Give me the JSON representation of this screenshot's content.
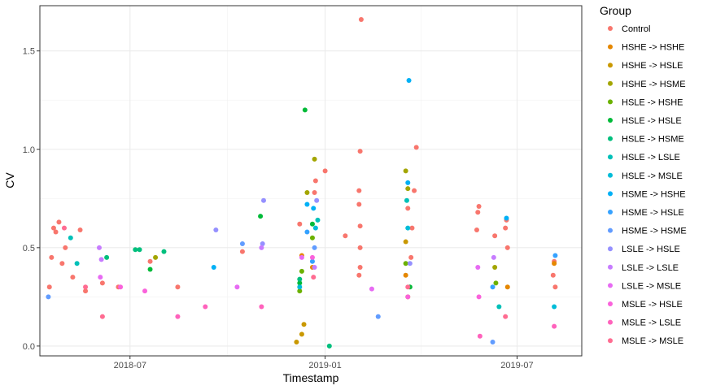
{
  "chart_data": {
    "type": "scatter",
    "title": "",
    "xlabel": "Timestamp",
    "ylabel": "CV",
    "x_type": "date",
    "xlim": [
      "2018-04-07",
      "2019-08-31"
    ],
    "ylim": [
      -0.05,
      1.73
    ],
    "x_ticks": [
      {
        "value": "2018-07-01",
        "label": "2018-07"
      },
      {
        "value": "2019-01-01",
        "label": "2019-01"
      },
      {
        "value": "2019-07-01",
        "label": "2019-07"
      }
    ],
    "y_ticks": [
      {
        "value": 0.0,
        "label": "0.0"
      },
      {
        "value": 0.5,
        "label": "0.5"
      },
      {
        "value": 1.0,
        "label": "1.0"
      },
      {
        "value": 1.5,
        "label": "1.5"
      }
    ],
    "grid": true,
    "legend": {
      "title": "Group",
      "position": "right"
    },
    "series": [
      {
        "name": "Control",
        "color": "#F8766D",
        "points": [
          {
            "x": "2018-04-20",
            "y": 0.6
          },
          {
            "x": "2018-04-25",
            "y": 0.63
          },
          {
            "x": "2018-04-22",
            "y": 0.58
          },
          {
            "x": "2018-05-15",
            "y": 0.59
          },
          {
            "x": "2018-05-01",
            "y": 0.5
          },
          {
            "x": "2018-04-18",
            "y": 0.45
          },
          {
            "x": "2018-04-16",
            "y": 0.3
          },
          {
            "x": "2018-04-28",
            "y": 0.42
          },
          {
            "x": "2018-05-08",
            "y": 0.35
          },
          {
            "x": "2018-05-20",
            "y": 0.28
          },
          {
            "x": "2018-06-05",
            "y": 0.32
          },
          {
            "x": "2018-06-20",
            "y": 0.3
          },
          {
            "x": "2018-07-20",
            "y": 0.43
          },
          {
            "x": "2018-08-15",
            "y": 0.3
          },
          {
            "x": "2018-10-15",
            "y": 0.48
          },
          {
            "x": "2018-12-08",
            "y": 0.62
          },
          {
            "x": "2018-12-22",
            "y": 0.78
          },
          {
            "x": "2018-12-23",
            "y": 0.84
          },
          {
            "x": "2019-01-01",
            "y": 0.89
          },
          {
            "x": "2019-01-20",
            "y": 0.56
          },
          {
            "x": "2019-02-04",
            "y": 1.66
          },
          {
            "x": "2019-02-03",
            "y": 0.99
          },
          {
            "x": "2019-02-02",
            "y": 0.79
          },
          {
            "x": "2019-02-02",
            "y": 0.72
          },
          {
            "x": "2019-02-03",
            "y": 0.61
          },
          {
            "x": "2019-02-03",
            "y": 0.4
          },
          {
            "x": "2019-02-02",
            "y": 0.36
          },
          {
            "x": "2019-02-03",
            "y": 0.5
          },
          {
            "x": "2019-03-28",
            "y": 1.01
          },
          {
            "x": "2019-03-26",
            "y": 0.79
          },
          {
            "x": "2019-03-20",
            "y": 0.7
          },
          {
            "x": "2019-03-24",
            "y": 0.6
          },
          {
            "x": "2019-03-23",
            "y": 0.45
          },
          {
            "x": "2019-05-26",
            "y": 0.71
          },
          {
            "x": "2019-05-25",
            "y": 0.68
          },
          {
            "x": "2019-05-24",
            "y": 0.59
          },
          {
            "x": "2019-06-10",
            "y": 0.56
          },
          {
            "x": "2019-06-21",
            "y": 0.64
          },
          {
            "x": "2019-06-20",
            "y": 0.6
          },
          {
            "x": "2019-06-22",
            "y": 0.5
          },
          {
            "x": "2019-08-05",
            "y": 0.43
          },
          {
            "x": "2019-08-04",
            "y": 0.36
          },
          {
            "x": "2019-08-06",
            "y": 0.3
          }
        ]
      },
      {
        "name": "HSHE -> HSHE",
        "color": "#E58700",
        "points": [
          {
            "x": "2018-12-10",
            "y": 0.46
          },
          {
            "x": "2018-12-20",
            "y": 0.4
          },
          {
            "x": "2019-03-18",
            "y": 0.36
          },
          {
            "x": "2019-06-22",
            "y": 0.3
          },
          {
            "x": "2019-08-05",
            "y": 0.42
          }
        ]
      },
      {
        "name": "HSHE -> HSLE",
        "color": "#C99800",
        "points": [
          {
            "x": "2018-12-05",
            "y": 0.02
          },
          {
            "x": "2018-12-10",
            "y": 0.06
          },
          {
            "x": "2018-12-12",
            "y": 0.11
          },
          {
            "x": "2019-03-18",
            "y": 0.53
          },
          {
            "x": "2019-03-20",
            "y": 0.25
          }
        ]
      },
      {
        "name": "HSHE -> HSME",
        "color": "#A3A500",
        "points": [
          {
            "x": "2018-12-22",
            "y": 0.95
          },
          {
            "x": "2018-12-15",
            "y": 0.78
          },
          {
            "x": "2018-07-25",
            "y": 0.45
          },
          {
            "x": "2019-03-18",
            "y": 0.89
          },
          {
            "x": "2019-03-20",
            "y": 0.8
          },
          {
            "x": "2019-06-10",
            "y": 0.4
          }
        ]
      },
      {
        "name": "HSLE -> HSHE",
        "color": "#6BB100",
        "points": [
          {
            "x": "2018-12-10",
            "y": 0.38
          },
          {
            "x": "2018-12-08",
            "y": 0.28
          },
          {
            "x": "2018-12-20",
            "y": 0.55
          },
          {
            "x": "2019-03-18",
            "y": 0.42
          },
          {
            "x": "2019-06-11",
            "y": 0.32
          }
        ]
      },
      {
        "name": "HSLE -> HSLE",
        "color": "#00BA38",
        "points": [
          {
            "x": "2018-12-13",
            "y": 1.2
          },
          {
            "x": "2018-07-20",
            "y": 0.39
          },
          {
            "x": "2018-11-01",
            "y": 0.66
          },
          {
            "x": "2018-12-20",
            "y": 0.62
          },
          {
            "x": "2018-12-08",
            "y": 0.32
          },
          {
            "x": "2019-03-22",
            "y": 0.3
          }
        ]
      },
      {
        "name": "HSLE -> HSME",
        "color": "#00BF7D",
        "points": [
          {
            "x": "2018-06-09",
            "y": 0.45
          },
          {
            "x": "2018-07-06",
            "y": 0.49
          },
          {
            "x": "2018-07-10",
            "y": 0.49
          },
          {
            "x": "2018-08-02",
            "y": 0.48
          },
          {
            "x": "2018-12-08",
            "y": 0.34
          },
          {
            "x": "2019-01-05",
            "y": 0.0
          }
        ]
      },
      {
        "name": "HSLE -> LSLE",
        "color": "#00C0B8",
        "points": [
          {
            "x": "2018-05-12",
            "y": 0.42
          },
          {
            "x": "2018-05-06",
            "y": 0.55
          },
          {
            "x": "2018-12-25",
            "y": 0.64
          },
          {
            "x": "2019-03-19",
            "y": 0.74
          },
          {
            "x": "2019-06-14",
            "y": 0.2
          }
        ]
      },
      {
        "name": "HSLE -> MSLE",
        "color": "#00BCD8",
        "points": [
          {
            "x": "2018-12-08",
            "y": 0.3
          },
          {
            "x": "2018-12-23",
            "y": 0.6
          },
          {
            "x": "2019-03-20",
            "y": 0.6
          },
          {
            "x": "2019-08-05",
            "y": 0.2
          }
        ]
      },
      {
        "name": "HSME -> HSHE",
        "color": "#00B0F6",
        "points": [
          {
            "x": "2019-03-21",
            "y": 1.35
          },
          {
            "x": "2019-03-20",
            "y": 0.83
          },
          {
            "x": "2018-12-21",
            "y": 0.7
          },
          {
            "x": "2018-12-15",
            "y": 0.72
          },
          {
            "x": "2019-06-21",
            "y": 0.65
          },
          {
            "x": "2018-09-18",
            "y": 0.4
          }
        ]
      },
      {
        "name": "HSME -> HSLE",
        "color": "#35A2FF",
        "points": [
          {
            "x": "2018-12-15",
            "y": 0.58
          },
          {
            "x": "2018-12-20",
            "y": 0.43
          },
          {
            "x": "2019-06-08",
            "y": 0.3
          },
          {
            "x": "2019-08-06",
            "y": 0.46
          }
        ]
      },
      {
        "name": "HSME -> HSME",
        "color": "#619CFF",
        "points": [
          {
            "x": "2019-02-20",
            "y": 0.15
          },
          {
            "x": "2018-10-15",
            "y": 0.52
          },
          {
            "x": "2018-04-15",
            "y": 0.25
          },
          {
            "x": "2018-12-22",
            "y": 0.5
          },
          {
            "x": "2019-06-08",
            "y": 0.02
          }
        ]
      },
      {
        "name": "LSLE -> HSLE",
        "color": "#9590FF",
        "points": [
          {
            "x": "2018-11-04",
            "y": 0.74
          },
          {
            "x": "2018-09-20",
            "y": 0.59
          },
          {
            "x": "2018-11-03",
            "y": 0.52
          },
          {
            "x": "2018-12-24",
            "y": 0.74
          },
          {
            "x": "2019-03-22",
            "y": 0.42
          }
        ]
      },
      {
        "name": "LSLE -> LSLE",
        "color": "#C77CFF",
        "points": [
          {
            "x": "2018-06-02",
            "y": 0.5
          },
          {
            "x": "2018-06-04",
            "y": 0.44
          },
          {
            "x": "2018-11-02",
            "y": 0.5
          },
          {
            "x": "2018-12-22",
            "y": 0.4
          },
          {
            "x": "2019-06-09",
            "y": 0.45
          }
        ]
      },
      {
        "name": "LSLE -> MSLE",
        "color": "#E76BF3",
        "points": [
          {
            "x": "2019-02-14",
            "y": 0.29
          },
          {
            "x": "2018-06-03",
            "y": 0.35
          },
          {
            "x": "2018-10-10",
            "y": 0.3
          },
          {
            "x": "2018-12-10",
            "y": 0.45
          },
          {
            "x": "2019-05-25",
            "y": 0.4
          }
        ]
      },
      {
        "name": "MSLE -> HSLE",
        "color": "#FA62DB",
        "points": [
          {
            "x": "2018-06-22",
            "y": 0.3
          },
          {
            "x": "2018-07-15",
            "y": 0.28
          },
          {
            "x": "2018-12-20",
            "y": 0.45
          },
          {
            "x": "2019-05-26",
            "y": 0.25
          },
          {
            "x": "2019-03-20",
            "y": 0.25
          }
        ]
      },
      {
        "name": "MSLE -> LSLE",
        "color": "#FF62BC",
        "points": [
          {
            "x": "2018-08-15",
            "y": 0.15
          },
          {
            "x": "2018-09-10",
            "y": 0.2
          },
          {
            "x": "2018-11-02",
            "y": 0.2
          },
          {
            "x": "2019-05-27",
            "y": 0.05
          },
          {
            "x": "2019-08-05",
            "y": 0.1
          }
        ]
      },
      {
        "name": "MSLE -> MSLE",
        "color": "#FF6C91",
        "points": [
          {
            "x": "2018-04-30",
            "y": 0.6
          },
          {
            "x": "2018-05-20",
            "y": 0.3
          },
          {
            "x": "2018-06-05",
            "y": 0.15
          },
          {
            "x": "2018-12-21",
            "y": 0.35
          },
          {
            "x": "2019-03-20",
            "y": 0.3
          },
          {
            "x": "2019-06-20",
            "y": 0.15
          }
        ]
      }
    ]
  }
}
